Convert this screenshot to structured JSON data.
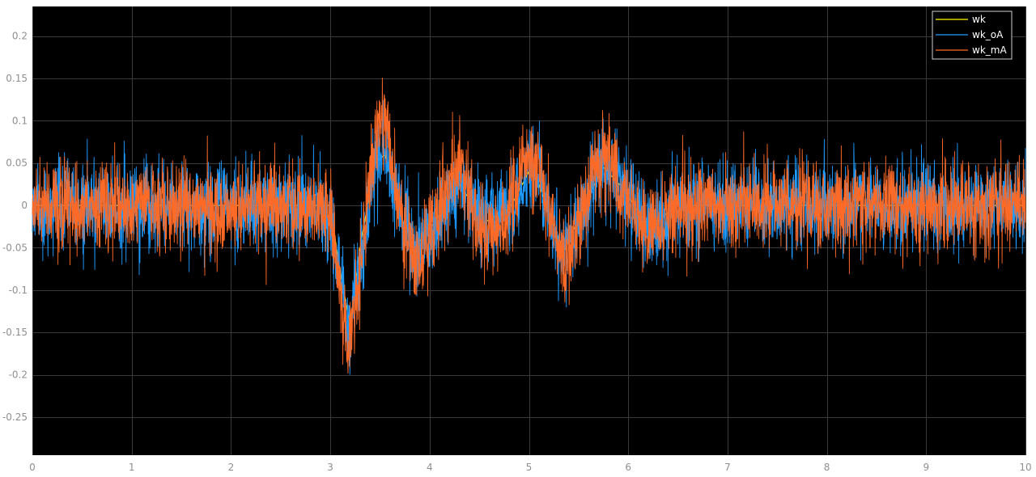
{
  "chart_data": {
    "type": "line",
    "title": "",
    "xlabel": "",
    "ylabel": "",
    "xlim": [
      0,
      10
    ],
    "ylim": [
      -0.295,
      0.235
    ],
    "grid": true,
    "background": "#000000",
    "legend_position": "top-right",
    "x_ticks": [
      0,
      1,
      2,
      3,
      4,
      5,
      6,
      7,
      8,
      9,
      10
    ],
    "x_tick_labels": [
      "0",
      "1",
      "2",
      "3",
      "4",
      "5",
      "6",
      "7",
      "8",
      "9",
      "10"
    ],
    "y_ticks": [
      0.2,
      0.15,
      0.1,
      0.05,
      0,
      -0.05,
      -0.1,
      -0.15,
      -0.2,
      -0.25
    ],
    "y_tick_labels": [
      "0.2",
      "0.15",
      "0.1",
      "0.05",
      "0",
      "-0.05",
      "-0.1",
      "-0.15",
      "-0.2",
      "-0.25"
    ],
    "series": [
      {
        "name": "wk",
        "color": "#ffff00",
        "noise_amplitude": 0.0,
        "trend": {
          "x": [
            0,
            3.0,
            3.1,
            3.2,
            3.3,
            3.45,
            3.55,
            3.7,
            3.85,
            4.05,
            4.3,
            4.55,
            4.8,
            5.0,
            5.1,
            5.35,
            5.6,
            5.75,
            5.95,
            6.2,
            6.5,
            10
          ],
          "y": [
            0,
            0,
            -0.08,
            -0.14,
            -0.05,
            0.05,
            0.06,
            -0.01,
            -0.05,
            -0.02,
            0.025,
            -0.02,
            -0.005,
            0.04,
            0.025,
            -0.055,
            0.01,
            0.045,
            0.02,
            -0.025,
            0,
            0
          ]
        }
      },
      {
        "name": "wk_oA",
        "color": "#1e9bff",
        "noise_amplitude": 0.05,
        "trend": {
          "x": [
            0,
            3.0,
            3.1,
            3.2,
            3.3,
            3.45,
            3.55,
            3.7,
            3.85,
            4.05,
            4.3,
            4.55,
            4.8,
            5.0,
            5.1,
            5.35,
            5.6,
            5.75,
            5.95,
            6.2,
            6.5,
            10
          ],
          "y": [
            0,
            0,
            -0.09,
            -0.15,
            -0.06,
            0.05,
            0.07,
            -0.01,
            -0.06,
            -0.02,
            0.025,
            -0.02,
            -0.005,
            0.045,
            0.03,
            -0.06,
            0.01,
            0.05,
            0.02,
            -0.03,
            0,
            0
          ]
        }
      },
      {
        "name": "wk_mA",
        "color": "#ff6a26",
        "noise_amplitude": 0.05,
        "trend": {
          "x": [
            0,
            3.0,
            3.1,
            3.2,
            3.3,
            3.45,
            3.55,
            3.7,
            3.85,
            4.05,
            4.3,
            4.55,
            4.8,
            5.0,
            5.1,
            5.35,
            5.6,
            5.75,
            5.95,
            6.2,
            6.5,
            10
          ],
          "y": [
            0,
            0,
            -0.1,
            -0.17,
            -0.07,
            0.09,
            0.1,
            0.0,
            -0.07,
            -0.02,
            0.05,
            -0.04,
            -0.005,
            0.07,
            0.05,
            -0.07,
            0.02,
            0.06,
            0.02,
            -0.035,
            0,
            0
          ]
        }
      }
    ]
  }
}
